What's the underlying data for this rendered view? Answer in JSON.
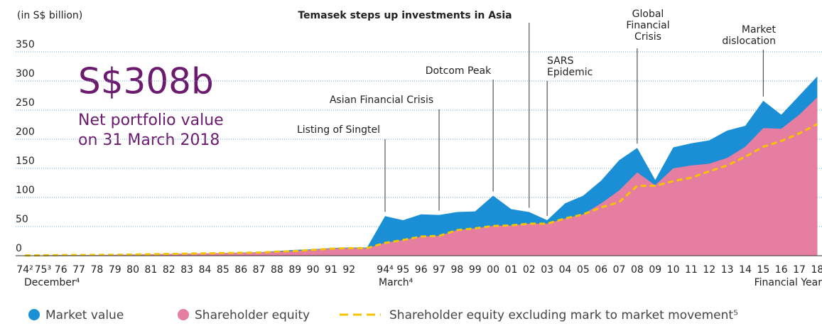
{
  "chart_data": {
    "type": "area",
    "unit_label": "(in S$ billion)",
    "headline": "S$308b",
    "subheadline": [
      "Net portfolio value",
      "on 31 March 2018"
    ],
    "categories": [
      "74²",
      "75³",
      "76",
      "77",
      "78",
      "79",
      "80",
      "81",
      "82",
      "83",
      "84",
      "85",
      "86",
      "87",
      "88",
      "89",
      "90",
      "91",
      "92",
      null,
      "94⁴",
      "95",
      "96",
      "97",
      "98",
      "99",
      "00",
      "01",
      "02",
      "03",
      "04",
      "05",
      "06",
      "07",
      "08",
      "09",
      "10",
      "11",
      "12",
      "13",
      "14",
      "15",
      "16",
      "17",
      "18"
    ],
    "period_labels": [
      "December⁴",
      "March⁴",
      "Financial Year"
    ],
    "series": [
      {
        "name": "Market value",
        "color": "#1a8fd6",
        "style": "area",
        "values": [
          0.4,
          0.6,
          1,
          1,
          1.2,
          1.5,
          2,
          2.5,
          3,
          3.5,
          4,
          4.5,
          5.5,
          6,
          8,
          10,
          11,
          13,
          14,
          14,
          68,
          61,
          71,
          70,
          75,
          76,
          103,
          80,
          75,
          61,
          90,
          103,
          129,
          164,
          185,
          130,
          186,
          193,
          198,
          215,
          223,
          266,
          242,
          275,
          308
        ]
      },
      {
        "name": "Shareholder equity",
        "color": "#e57ea1",
        "style": "area",
        "values": [
          0.4,
          0.6,
          1,
          1,
          1.2,
          1.5,
          2,
          2.5,
          3,
          3.5,
          4,
          4.5,
          5,
          5.5,
          7,
          8,
          10,
          12,
          13,
          13,
          22,
          27,
          33,
          34,
          44,
          47,
          51,
          52,
          55,
          55,
          64,
          71,
          90,
          112,
          143,
          121,
          150,
          155,
          158,
          168,
          187,
          219,
          218,
          242,
          272
        ]
      },
      {
        "name": "Shareholder equity excluding mark to market movement⁵",
        "color": "#f5c400",
        "style": "dashed-line",
        "values": [
          0.4,
          0.6,
          1,
          1,
          1.2,
          1.5,
          2,
          2.5,
          3,
          3.5,
          4,
          4.5,
          5,
          5.5,
          7,
          8,
          10,
          12,
          13,
          13,
          22,
          27,
          33,
          34,
          44,
          47,
          51,
          52,
          55,
          55,
          64,
          71,
          83,
          92,
          120,
          120,
          128,
          134,
          145,
          155,
          170,
          187,
          197,
          210,
          226
        ]
      }
    ],
    "ylim": [
      0,
      350
    ],
    "yticks": [
      0,
      50,
      100,
      150,
      200,
      250,
      300,
      350
    ],
    "grid": true,
    "annotations": [
      {
        "text": [
          "Temasek steps up investments in Asia"
        ],
        "category": "02"
      },
      {
        "text": [
          "Listing of Singtel"
        ],
        "category": "94⁴"
      },
      {
        "text": [
          "Asian Financial Crisis"
        ],
        "category": "97"
      },
      {
        "text": [
          "Dotcom Peak"
        ],
        "category": "00"
      },
      {
        "text": [
          "SARS",
          "Epidemic"
        ],
        "category": "03"
      },
      {
        "text": [
          "Global",
          "Financial",
          "Crisis"
        ],
        "category": "08"
      },
      {
        "text": [
          "Market",
          "dislocation"
        ],
        "category": "15"
      }
    ]
  }
}
